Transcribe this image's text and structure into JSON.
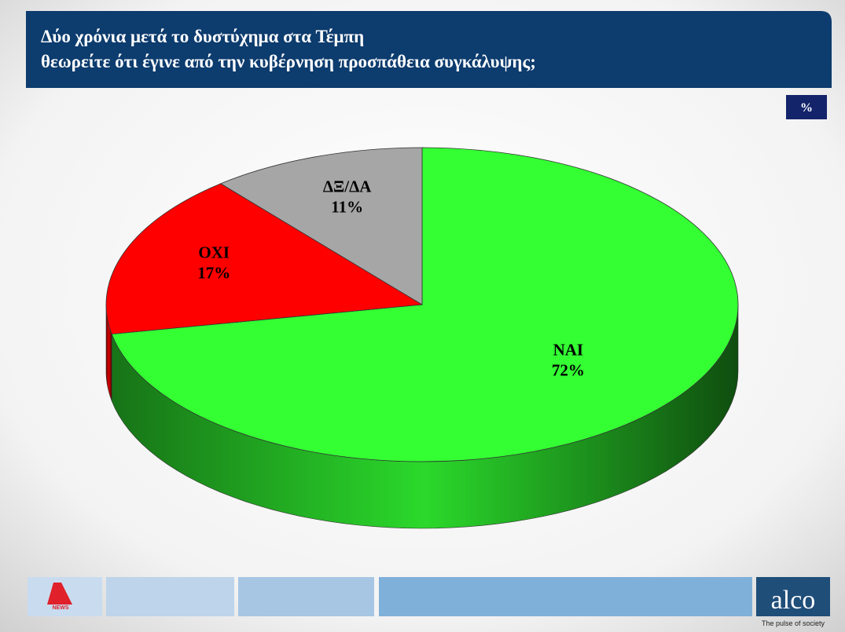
{
  "chart_data": {
    "type": "pie3d",
    "title": "Δύο χρόνια μετά το δυστύχημα στα Τέμπη",
    "subtitle": "θεωρείτε ότι έγινε  από την κυβέρνηση προσπάθεια συγκάλυψης;",
    "unit": "%",
    "categories": [
      "ΝΑΙ",
      "ΟΧΙ",
      "ΔΞ/ΔΑ"
    ],
    "values": [
      72,
      17,
      11
    ],
    "value_labels": [
      "72%",
      "17%",
      "11%"
    ],
    "colors": [
      "#33ff33",
      "#ff0000",
      "#a6a6a6"
    ]
  },
  "footer": {
    "logo": "NEWS",
    "brand": "alco",
    "tagline": "The pulse of society"
  }
}
